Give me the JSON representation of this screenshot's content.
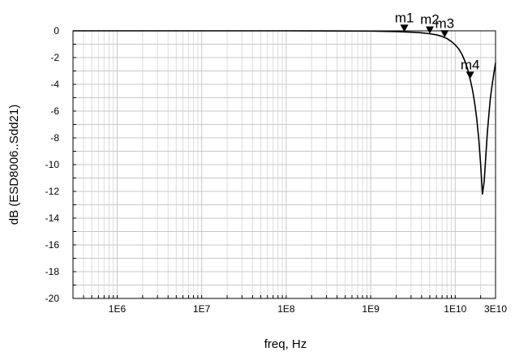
{
  "chart_data": {
    "type": "line",
    "title": "",
    "xlabel": "freq, Hz",
    "ylabel": "dB (ESD8006..Sdd21)",
    "x_scale": "log",
    "xlim": [
      300000,
      30000000000
    ],
    "ylim": [
      -20,
      0
    ],
    "grid": true,
    "x_ticks": [
      {
        "value": 1000000,
        "label": "1E6"
      },
      {
        "value": 10000000,
        "label": "1E7"
      },
      {
        "value": 100000000,
        "label": "1E8"
      },
      {
        "value": 1000000000,
        "label": "1E9"
      },
      {
        "value": 10000000000,
        "label": "1E10"
      },
      {
        "value": 30000000000,
        "label": "3E10"
      }
    ],
    "y_ticks": [
      {
        "value": 0,
        "label": "0"
      },
      {
        "value": -2,
        "label": "-2"
      },
      {
        "value": -4,
        "label": "-4"
      },
      {
        "value": -6,
        "label": "-6"
      },
      {
        "value": -8,
        "label": "-8"
      },
      {
        "value": -10,
        "label": "-10"
      },
      {
        "value": -12,
        "label": "-12"
      },
      {
        "value": -14,
        "label": "-14"
      },
      {
        "value": -16,
        "label": "-16"
      },
      {
        "value": -18,
        "label": "-18"
      },
      {
        "value": -20,
        "label": "-20"
      }
    ],
    "series": [
      {
        "color": "#000000",
        "x": [
          300000,
          1000000,
          10000000,
          100000000,
          1000000000,
          2000000000,
          3000000000,
          4000000000,
          5000000000,
          6000000000,
          7000000000,
          8000000000,
          9000000000,
          10000000000,
          11000000000,
          12000000000,
          13000000000,
          14000000000,
          15000000000,
          16000000000,
          17000000000,
          18000000000,
          19000000000,
          20000000000,
          21000000000,
          22000000000,
          23000000000,
          24000000000,
          25000000000,
          26000000000,
          27000000000,
          28000000000,
          30000000000
        ],
        "y": [
          0,
          0,
          0,
          0,
          -0.02,
          -0.06,
          -0.1,
          -0.15,
          -0.22,
          -0.3,
          -0.42,
          -0.58,
          -0.8,
          -1.05,
          -1.35,
          -1.75,
          -2.25,
          -2.85,
          -3.6,
          -4.4,
          -5.4,
          -6.6,
          -8.1,
          -10.0,
          -12.2,
          -11.3,
          -9.4,
          -7.6,
          -6.3,
          -5.1,
          -4.3,
          -3.6,
          -2.4
        ]
      }
    ],
    "markers": [
      {
        "label": "m1",
        "x": 2500000000,
        "y": -0.08
      },
      {
        "label": "m2",
        "x": 5000000000,
        "y": -0.22
      },
      {
        "label": "m3",
        "x": 7500000000,
        "y": -0.5
      },
      {
        "label": "m4",
        "x": 15000000000,
        "y": -3.6
      }
    ]
  }
}
